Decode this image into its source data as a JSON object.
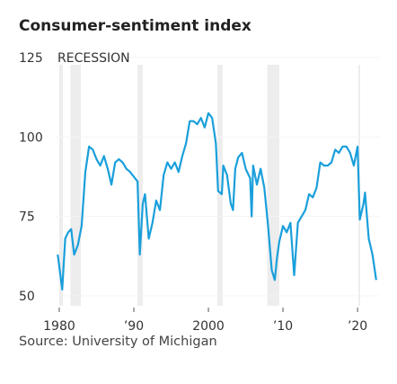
{
  "chart_data": {
    "type": "line",
    "title": "Consumer-sentiment index",
    "recession_label": "RECESSION",
    "source": "Source: University of Michigan",
    "color": "#1a9fdb",
    "recession_color": "#ededed",
    "x": [
      1979.8,
      1980.4,
      1980.8,
      1981.2,
      1981.6,
      1982.0,
      1982.5,
      1983.0,
      1983.5,
      1984.0,
      1984.5,
      1985.0,
      1985.5,
      1986.0,
      1986.5,
      1987.0,
      1987.5,
      1988.0,
      1988.5,
      1989.0,
      1989.5,
      1990.5,
      1990.8,
      1991.2,
      1991.5,
      1992.0,
      1992.5,
      1993.0,
      1993.5,
      1994.0,
      1994.5,
      1995.0,
      1995.5,
      1996.0,
      1996.5,
      1997.0,
      1997.5,
      1998.0,
      1998.5,
      1999.0,
      1999.5,
      2000.0,
      2000.5,
      2001.0,
      2001.3,
      2001.8,
      2002.0,
      2002.5,
      2003.0,
      2003.3,
      2003.6,
      2004.0,
      2004.5,
      2005.0,
      2005.6,
      2005.8,
      2006.0,
      2006.5,
      2007.0,
      2007.5,
      2008.0,
      2008.5,
      2008.9,
      2009.2,
      2009.5,
      2010.0,
      2010.5,
      2011.0,
      2011.5,
      2012.0,
      2012.5,
      2013.0,
      2013.5,
      2014.0,
      2014.5,
      2015.0,
      2015.5,
      2016.0,
      2016.5,
      2017.0,
      2017.5,
      2018.0,
      2018.5,
      2019.0,
      2019.5,
      2020.0,
      2020.3,
      2020.8,
      2021.0,
      2021.5,
      2022.0,
      2022.5
    ],
    "values": [
      63,
      52,
      68,
      70,
      71,
      63,
      66,
      72,
      89,
      97,
      96,
      93,
      91,
      94,
      90,
      85,
      92,
      93,
      92,
      90,
      89,
      86,
      63,
      79,
      82,
      68,
      73,
      80,
      77,
      88,
      92,
      90,
      92,
      89,
      94,
      98,
      105,
      105,
      104,
      106,
      103,
      107.5,
      106,
      98,
      83,
      82,
      91,
      88,
      79,
      77,
      90,
      93.6,
      95,
      90,
      87,
      75,
      91,
      85,
      90,
      84,
      72,
      58,
      55,
      62,
      67,
      72,
      70,
      73,
      56.5,
      73,
      75,
      77,
      82,
      81,
      84,
      92,
      91,
      91,
      92,
      96,
      95,
      97,
      97,
      95,
      91,
      97,
      74,
      79,
      82.5,
      68,
      63,
      55
    ],
    "recessions": [
      [
        1980.0,
        1980.5
      ],
      [
        1981.5,
        1982.9
      ],
      [
        1990.5,
        1991.2
      ],
      [
        2001.2,
        2001.9
      ],
      [
        2007.9,
        2009.5
      ],
      [
        2020.1,
        2020.3
      ]
    ],
    "xlim": [
      1978.5,
      2023
    ],
    "xticks": [
      {
        "value": 1980,
        "label": "1980"
      },
      {
        "value": 1990,
        "label": "’90"
      },
      {
        "value": 2000,
        "label": "2000"
      },
      {
        "value": 2010,
        "label": "’10"
      },
      {
        "value": 2020,
        "label": "’20"
      }
    ],
    "ylim": [
      50,
      125
    ],
    "yticks": [
      50,
      75,
      100,
      125
    ]
  }
}
